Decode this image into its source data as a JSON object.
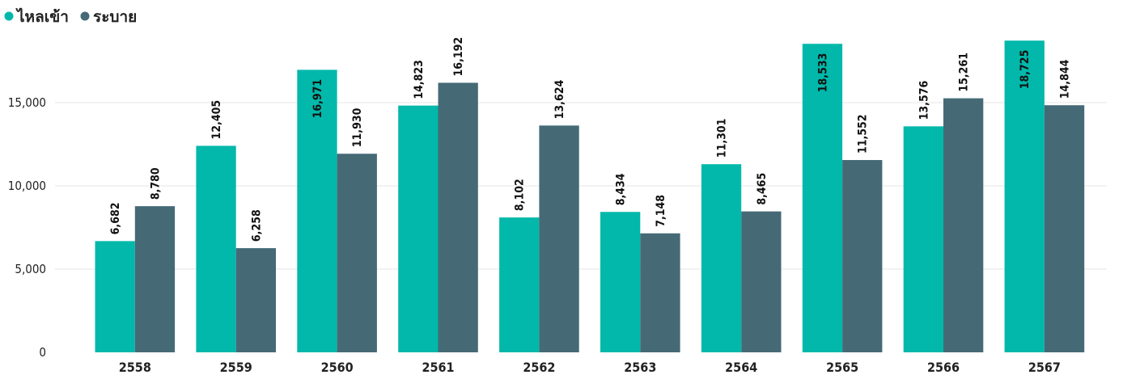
{
  "chart_data": {
    "type": "bar",
    "categories": [
      "2558",
      "2559",
      "2560",
      "2561",
      "2562",
      "2563",
      "2564",
      "2565",
      "2566",
      "2567"
    ],
    "series": [
      {
        "name": "ไหลเข้า",
        "color": "#01b8aa",
        "values": [
          6682,
          12405,
          16971,
          14823,
          8102,
          8434,
          11301,
          18533,
          13576,
          18725
        ],
        "labels": [
          "6,682",
          "12,405",
          "16,971",
          "14,823",
          "8,102",
          "8,434",
          "11,301",
          "18,533",
          "13,576",
          "18,725"
        ]
      },
      {
        "name": "ระบาย",
        "color": "#456a76",
        "values": [
          8780,
          6258,
          11930,
          16192,
          13624,
          7148,
          8465,
          11552,
          15261,
          14844
        ],
        "labels": [
          "8,780",
          "6,258",
          "11,930",
          "16,192",
          "13,624",
          "7,148",
          "8,465",
          "11,552",
          "15,261",
          "14,844"
        ]
      }
    ],
    "title": "",
    "xlabel": "",
    "ylabel": "",
    "ylim": [
      0,
      19000
    ],
    "yticks": [
      0,
      5000,
      10000,
      15000
    ],
    "ytick_labels": [
      "0",
      "5,000",
      "10,000",
      "15,000"
    ],
    "grid": true,
    "legend_position": "top-left"
  }
}
